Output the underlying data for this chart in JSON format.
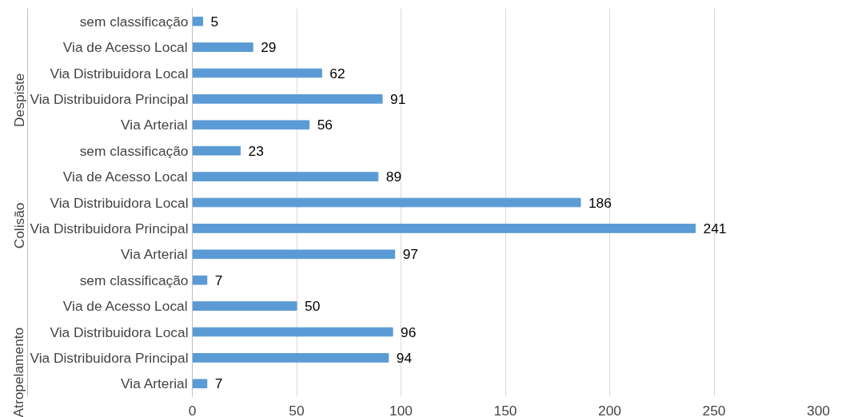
{
  "chart_data": {
    "type": "bar",
    "orientation": "horizontal",
    "categories": [
      "sem classificação",
      "Via de Acesso Local",
      "Via Distribuidora Local",
      "Via Distribuidora Principal",
      "Via Arterial",
      "sem classificação",
      "Via de Acesso Local",
      "Via Distribuidora Local",
      "Via Distribuidora Principal",
      "Via Arterial",
      "sem classificação",
      "Via de Acesso Local",
      "Via Distribuidora Local",
      "Via Distribuidora Principal",
      "Via Arterial"
    ],
    "values": [
      5,
      29,
      62,
      91,
      56,
      23,
      89,
      186,
      241,
      97,
      7,
      50,
      96,
      94,
      7
    ],
    "color": "#5b9bd5",
    "annotations": [
      "Despiste",
      "Colisão",
      "Atropelamento"
    ],
    "xlim": [
      0,
      300
    ],
    "xticks": [
      0,
      50,
      100,
      150,
      200,
      250,
      300
    ],
    "grid": "x",
    "data_labels": true
  }
}
